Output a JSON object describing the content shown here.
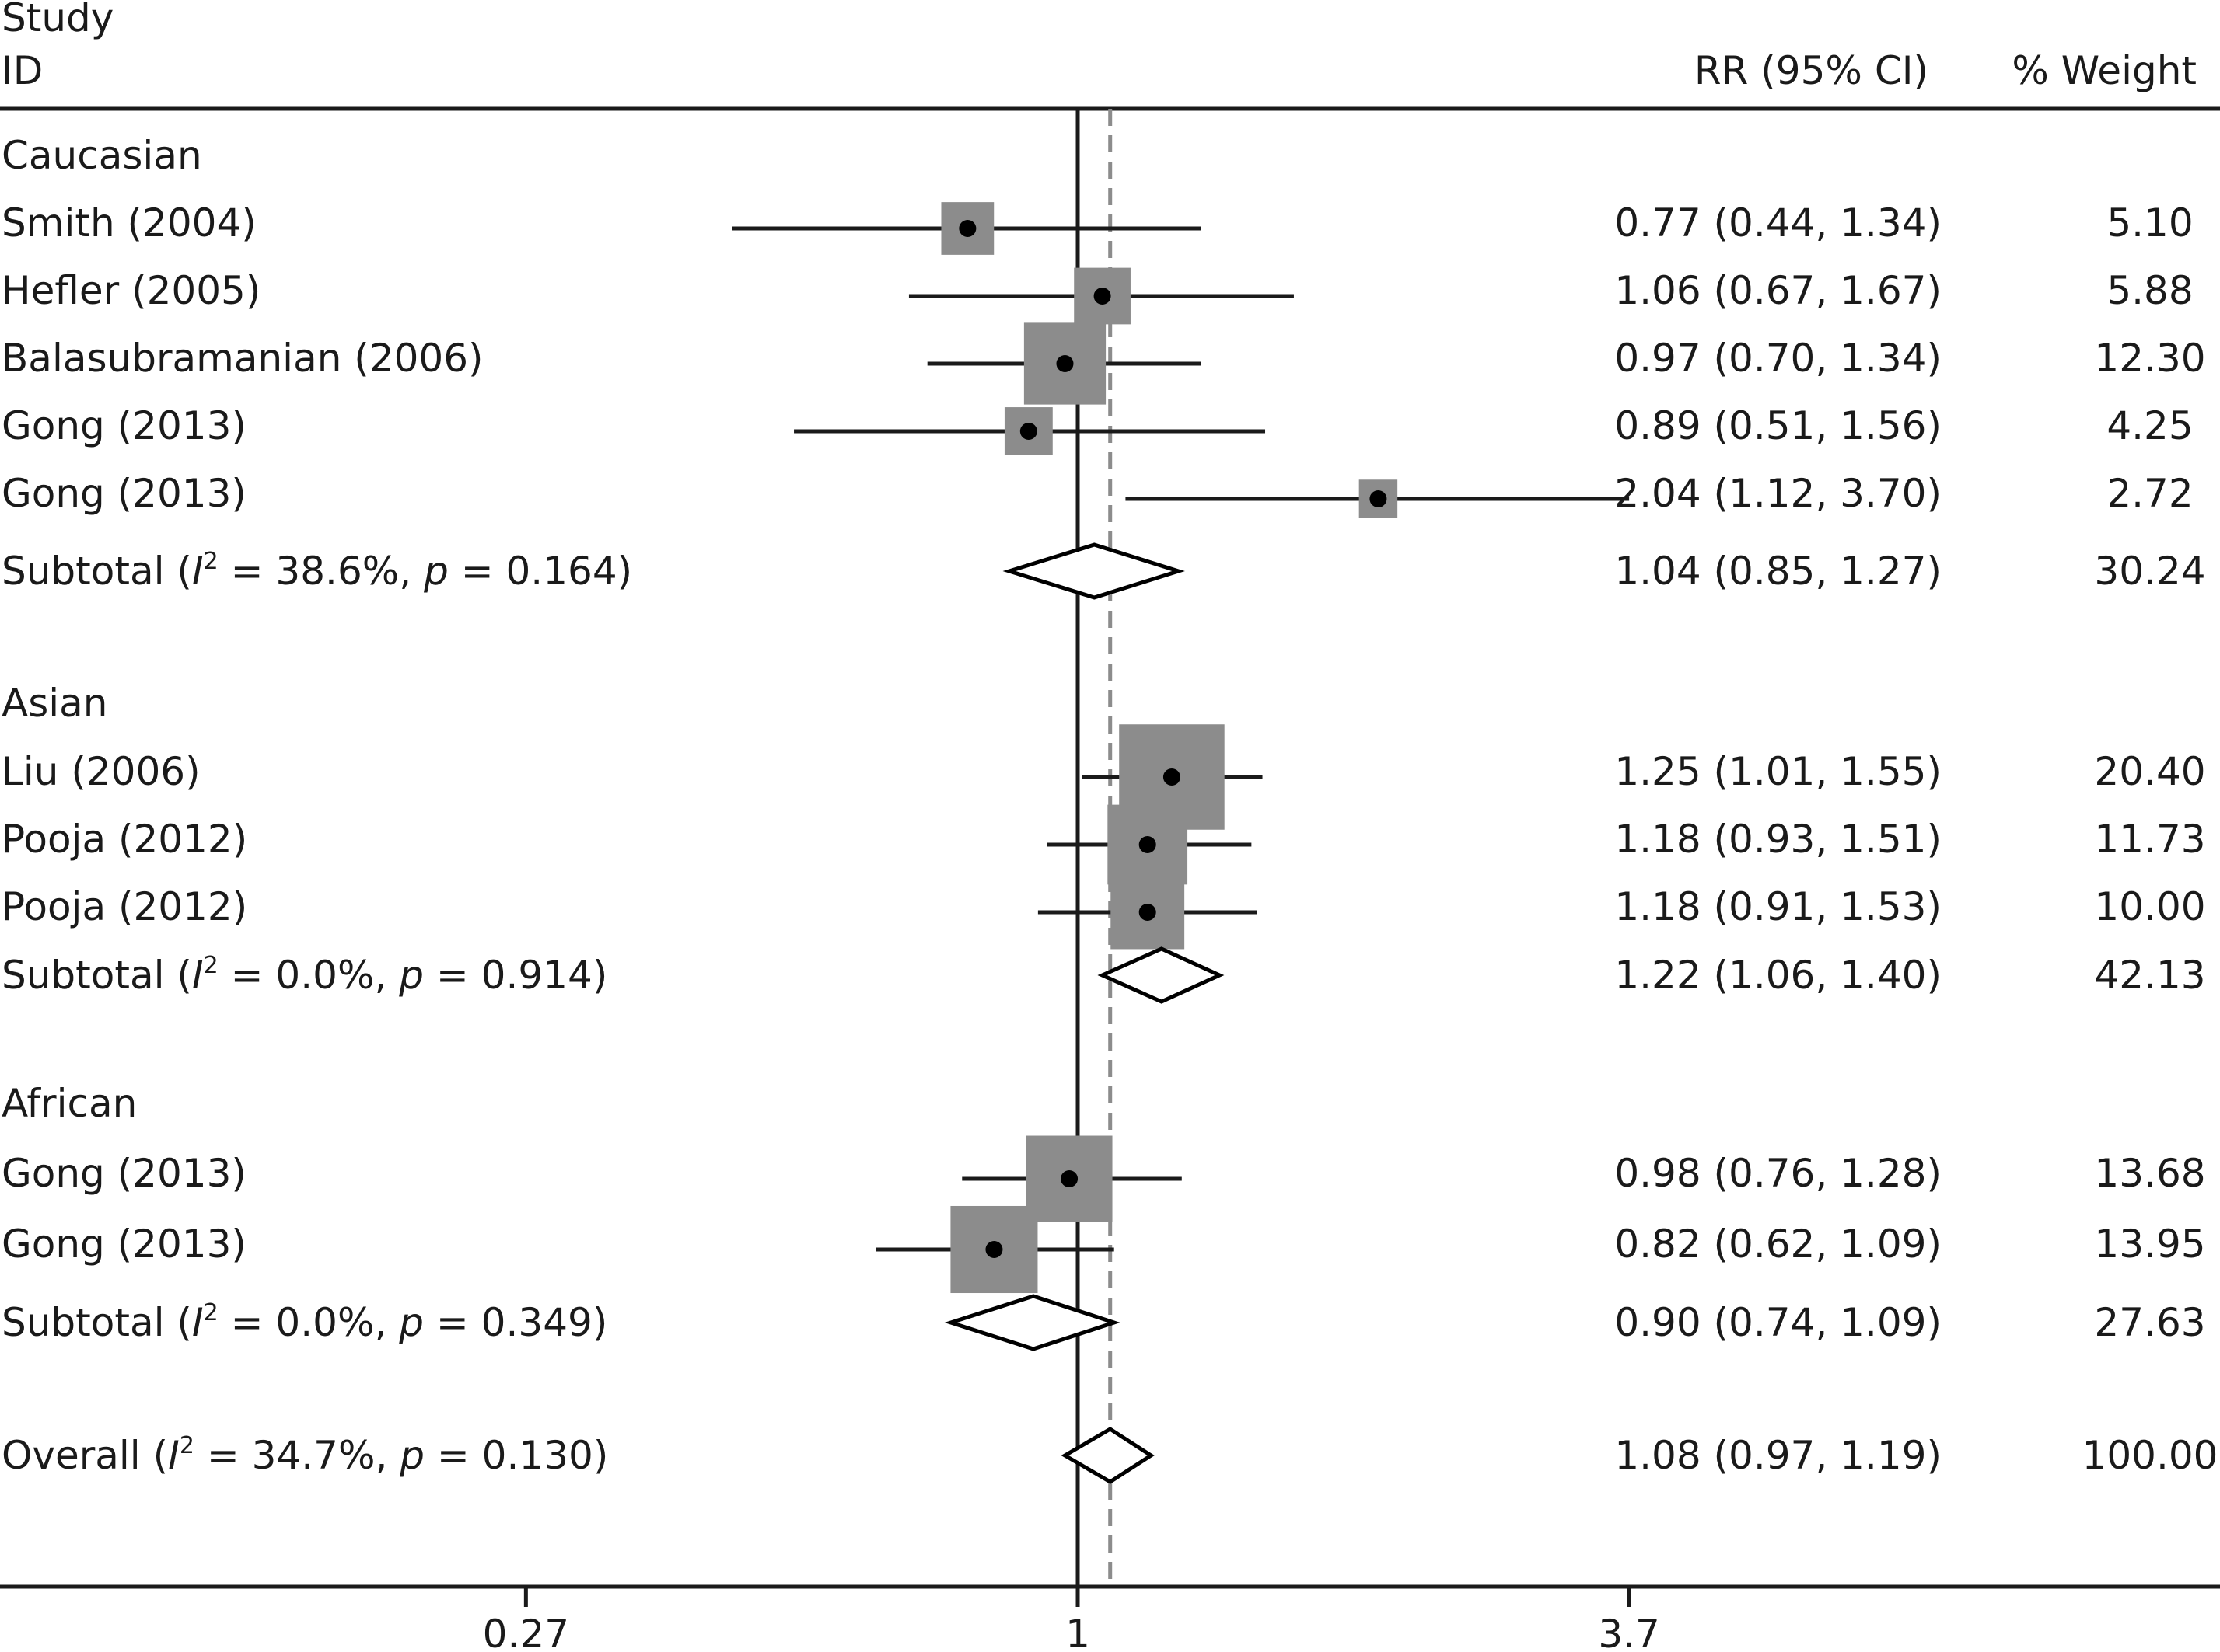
{
  "chart_data": {
    "type": "forest",
    "header": {
      "study_line1": "Study",
      "study_line2": "ID",
      "effect": "RR (95% CI)",
      "weight": "% Weight"
    },
    "x_axis": {
      "scale": "log",
      "ticks": [
        {
          "value": 0.27,
          "label": "0.27"
        },
        {
          "value": 1,
          "label": "1"
        },
        {
          "value": 3.7,
          "label": "3.7"
        }
      ],
      "null_value": 1,
      "overall_reference": 1.08
    },
    "groups": [
      {
        "name": "Caucasian",
        "studies": [
          {
            "label": "Smith (2004)",
            "rr": 0.77,
            "lo": 0.44,
            "hi": 1.34,
            "ci_text": "0.77 (0.44, 1.34)",
            "weight": 5.1,
            "weight_text": "5.10",
            "arrow_right": false
          },
          {
            "label": "Hefler (2005)",
            "rr": 1.06,
            "lo": 0.67,
            "hi": 1.67,
            "ci_text": "1.06 (0.67, 1.67)",
            "weight": 5.88,
            "weight_text": "5.88",
            "arrow_right": false
          },
          {
            "label": "Balasubramanian (2006)",
            "rr": 0.97,
            "lo": 0.7,
            "hi": 1.34,
            "ci_text": "0.97 (0.70, 1.34)",
            "weight": 12.3,
            "weight_text": "12.30",
            "arrow_right": false
          },
          {
            "label": "Gong (2013)",
            "rr": 0.89,
            "lo": 0.51,
            "hi": 1.56,
            "ci_text": "0.89 (0.51, 1.56)",
            "weight": 4.25,
            "weight_text": "4.25",
            "arrow_right": false
          },
          {
            "label": "Gong (2013)",
            "rr": 2.04,
            "lo": 1.12,
            "hi": 3.7,
            "ci_text": "2.04 (1.12, 3.70)",
            "weight": 2.72,
            "weight_text": "2.72",
            "arrow_right": true
          }
        ],
        "subtotal": {
          "label_pre": "Subtotal (",
          "i2_text": " = 38.6%, ",
          "p_text": " = 0.164)",
          "rr": 1.04,
          "lo": 0.85,
          "hi": 1.27,
          "ci_text": "1.04 (0.85, 1.27)",
          "weight_text": "30.24"
        }
      },
      {
        "name": "Asian",
        "studies": [
          {
            "label": "Liu (2006)",
            "rr": 1.25,
            "lo": 1.01,
            "hi": 1.55,
            "ci_text": "1.25 (1.01, 1.55)",
            "weight": 20.4,
            "weight_text": "20.40",
            "arrow_right": false
          },
          {
            "label": "Pooja (2012)",
            "rr": 1.18,
            "lo": 0.93,
            "hi": 1.51,
            "ci_text": "1.18 (0.93, 1.51)",
            "weight": 11.73,
            "weight_text": "11.73",
            "arrow_right": false
          },
          {
            "label": "Pooja (2012)",
            "rr": 1.18,
            "lo": 0.91,
            "hi": 1.53,
            "ci_text": "1.18 (0.91, 1.53)",
            "weight": 10.0,
            "weight_text": "10.00",
            "arrow_right": false
          }
        ],
        "subtotal": {
          "label_pre": "Subtotal (",
          "i2_text": " = 0.0%, ",
          "p_text": " = 0.914)",
          "rr": 1.22,
          "lo": 1.06,
          "hi": 1.4,
          "ci_text": "1.22 (1.06, 1.40)",
          "weight_text": "42.13"
        }
      },
      {
        "name": "African",
        "studies": [
          {
            "label": "Gong (2013)",
            "rr": 0.98,
            "lo": 0.76,
            "hi": 1.28,
            "ci_text": "0.98 (0.76, 1.28)",
            "weight": 13.68,
            "weight_text": "13.68",
            "arrow_right": false
          },
          {
            "label": "Gong (2013)",
            "rr": 0.82,
            "lo": 0.62,
            "hi": 1.09,
            "ci_text": "0.82 (0.62, 1.09)",
            "weight": 13.95,
            "weight_text": "13.95",
            "arrow_right": false
          }
        ],
        "subtotal": {
          "label_pre": "Subtotal (",
          "i2_text": " = 0.0%, ",
          "p_text": " = 0.349)",
          "rr": 0.9,
          "lo": 0.74,
          "hi": 1.09,
          "ci_text": "0.90 (0.74, 1.09)",
          "weight_text": "27.63"
        }
      }
    ],
    "overall": {
      "label_pre": "Overall (",
      "i2_text": " = 34.7%, ",
      "p_text": " = 0.130)",
      "rr": 1.08,
      "lo": 0.97,
      "hi": 1.19,
      "ci_text": "1.08 (0.97, 1.19)",
      "weight_text": "100.00"
    },
    "stat_symbols": {
      "i": "I",
      "sup": "2",
      "p": "p"
    }
  }
}
